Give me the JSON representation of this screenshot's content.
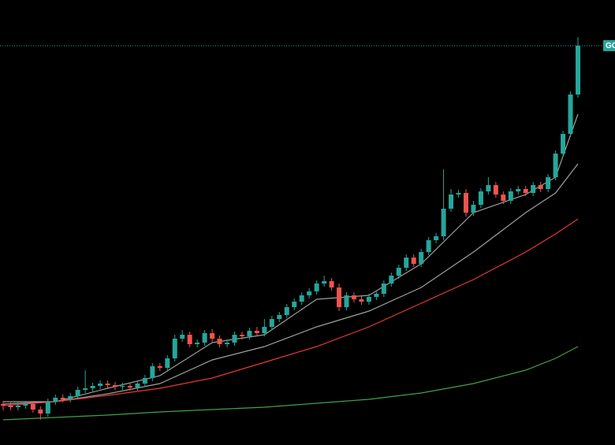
{
  "chart_data": {
    "type": "candlestick",
    "price_label": "GO",
    "up_color": "#26a69a",
    "down_color": "#ef5350",
    "ylim": [
      0,
      565
    ],
    "open": [
      52,
      50,
      48,
      50,
      52,
      45,
      40,
      55,
      60,
      58,
      62,
      70,
      72,
      75,
      78,
      76,
      74,
      75,
      73,
      78,
      85,
      100,
      98,
      110,
      135,
      140,
      128,
      130,
      142,
      135,
      128,
      130,
      140,
      138,
      145,
      142,
      150,
      160,
      165,
      175,
      182,
      190,
      195,
      205,
      208,
      200,
      175,
      190,
      185,
      182,
      188,
      192,
      205,
      215,
      225,
      238,
      230,
      245,
      260,
      265,
      300,
      318,
      320,
      295,
      305,
      322,
      330,
      318,
      310,
      322,
      325,
      320,
      330,
      325,
      340,
      370,
      395,
      445
    ],
    "high": [
      56,
      54,
      54,
      56,
      56,
      49,
      59,
      64,
      64,
      66,
      74,
      95,
      79,
      82,
      82,
      80,
      79,
      79,
      82,
      89,
      104,
      104,
      114,
      140,
      146,
      144,
      134,
      146,
      147,
      139,
      134,
      144,
      144,
      149,
      150,
      160,
      164,
      169,
      179,
      186,
      194,
      199,
      209,
      215,
      212,
      205,
      194,
      194,
      189,
      192,
      196,
      209,
      219,
      229,
      242,
      242,
      249,
      264,
      269,
      350,
      325,
      324,
      325,
      310,
      326,
      340,
      334,
      322,
      326,
      329,
      329,
      334,
      334,
      344,
      374,
      399,
      449,
      518
    ],
    "low": [
      44,
      44,
      44,
      46,
      41,
      32,
      36,
      51,
      54,
      54,
      58,
      66,
      68,
      71,
      72,
      70,
      70,
      69,
      69,
      74,
      81,
      94,
      94,
      106,
      131,
      124,
      124,
      126,
      131,
      124,
      124,
      126,
      134,
      134,
      138,
      138,
      146,
      156,
      161,
      171,
      178,
      186,
      191,
      201,
      196,
      170,
      171,
      181,
      178,
      178,
      184,
      188,
      201,
      211,
      221,
      226,
      226,
      241,
      256,
      260,
      296,
      314,
      290,
      291,
      301,
      318,
      314,
      306,
      306,
      318,
      316,
      316,
      321,
      321,
      336,
      366,
      391,
      441
    ],
    "close": [
      50,
      48,
      50,
      52,
      45,
      40,
      55,
      60,
      58,
      62,
      70,
      72,
      75,
      78,
      76,
      74,
      75,
      73,
      78,
      85,
      100,
      98,
      110,
      135,
      140,
      128,
      130,
      142,
      135,
      128,
      130,
      140,
      138,
      145,
      142,
      150,
      160,
      165,
      175,
      182,
      190,
      195,
      205,
      208,
      200,
      175,
      190,
      185,
      182,
      188,
      192,
      205,
      215,
      225,
      238,
      230,
      245,
      260,
      265,
      300,
      318,
      320,
      295,
      305,
      322,
      330,
      318,
      310,
      322,
      325,
      320,
      330,
      325,
      340,
      370,
      395,
      445,
      507
    ],
    "lines": [
      {
        "color": "#9e9e9e",
        "x": [
          0,
          7,
          14,
          21,
          28,
          35,
          42,
          49,
          56,
          63,
          70,
          74,
          77
        ],
        "values": [
          52,
          55,
          72,
          88,
          130,
          140,
          185,
          190,
          230,
          295,
          318,
          340,
          420
        ]
      },
      {
        "color": "#9e9e9e",
        "x": [
          0,
          7,
          14,
          21,
          28,
          35,
          42,
          49,
          56,
          63,
          70,
          74,
          77
        ],
        "values": [
          55,
          55,
          65,
          78,
          108,
          125,
          150,
          170,
          200,
          245,
          295,
          320,
          357
        ]
      },
      {
        "color": "#e53935",
        "x": [
          0,
          7,
          14,
          21,
          28,
          35,
          42,
          49,
          56,
          63,
          70,
          74,
          77
        ],
        "values": [
          50,
          55,
          63,
          72,
          85,
          105,
          125,
          150,
          180,
          210,
          245,
          268,
          287
        ]
      },
      {
        "color": "#43a047",
        "x": [
          0,
          7,
          14,
          21,
          28,
          35,
          42,
          49,
          56,
          63,
          70,
          74,
          77
        ],
        "values": [
          32,
          35,
          38,
          42,
          45,
          48,
          53,
          58,
          66,
          78,
          95,
          110,
          125
        ]
      }
    ]
  }
}
